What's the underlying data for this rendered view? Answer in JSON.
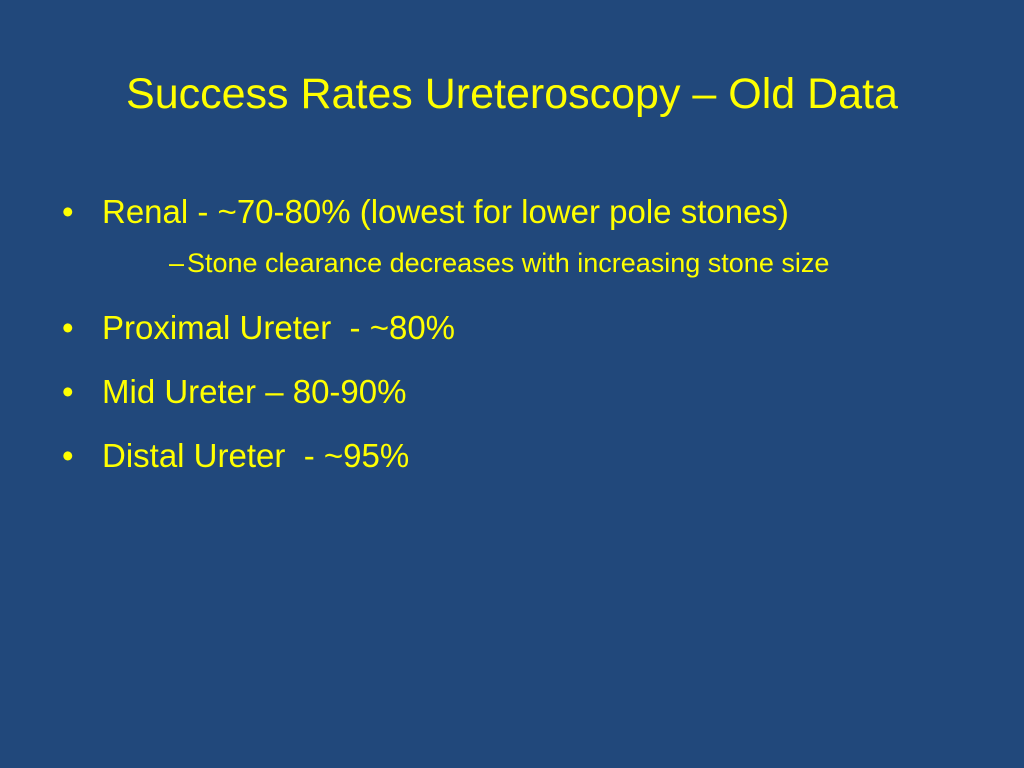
{
  "title": "Success Rates Ureteroscopy – Old Data",
  "bullets": [
    {
      "text": "Renal - ~70-80% (lowest for lower pole stones)",
      "sub": [
        "Stone clearance decreases with increasing stone size"
      ]
    },
    {
      "text": "Proximal Ureter  - ~80%"
    },
    {
      "text": "Mid Ureter – 80-90%"
    },
    {
      "text": "Distal Ureter  - ~95%"
    }
  ]
}
